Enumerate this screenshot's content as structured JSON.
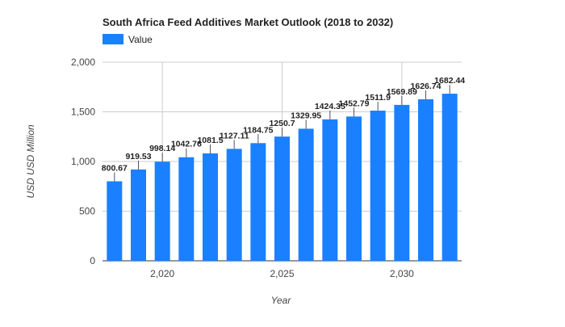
{
  "chart_data": {
    "type": "bar",
    "title": "South Africa Feed Additives Market Outlook (2018 to 2032)",
    "xlabel": "Year",
    "ylabel": "USD USD Million",
    "legend": {
      "label": "Value",
      "placement": "top-left"
    },
    "x": [
      2018,
      2019,
      2020,
      2021,
      2022,
      2023,
      2024,
      2025,
      2026,
      2027,
      2028,
      2029,
      2030,
      2031,
      2032
    ],
    "values": [
      800.67,
      919.53,
      998.14,
      1042.76,
      1081.5,
      1127.11,
      1184.75,
      1250.7,
      1329.95,
      1424.35,
      1452.79,
      1511.9,
      1569.89,
      1626.74,
      1682.44
    ],
    "data_labels": [
      "800.67",
      "919.53",
      "998.14",
      "1042.76",
      "1081.5",
      "1127.11",
      "1184.75",
      "1250.7",
      "1329.95",
      "1424.35",
      "1452.79",
      "1511.9",
      "1569.89",
      "1626.74",
      "1682.44"
    ],
    "ylim": [
      0,
      2000
    ],
    "xlim": [
      2017.5,
      2032.5
    ],
    "yticks": [
      0,
      500,
      1000,
      1500,
      2000
    ],
    "ytick_labels": [
      "0",
      "500",
      "1,000",
      "1,500",
      "2,000"
    ],
    "xticks": [
      2020,
      2025,
      2030
    ],
    "xtick_labels": [
      "2,020",
      "2,025",
      "2,030"
    ],
    "grid": true,
    "colors": {
      "bar": "#1a80ff",
      "grid": "#cccccc",
      "axis_text": "#444444",
      "label_text": "#222222"
    }
  }
}
